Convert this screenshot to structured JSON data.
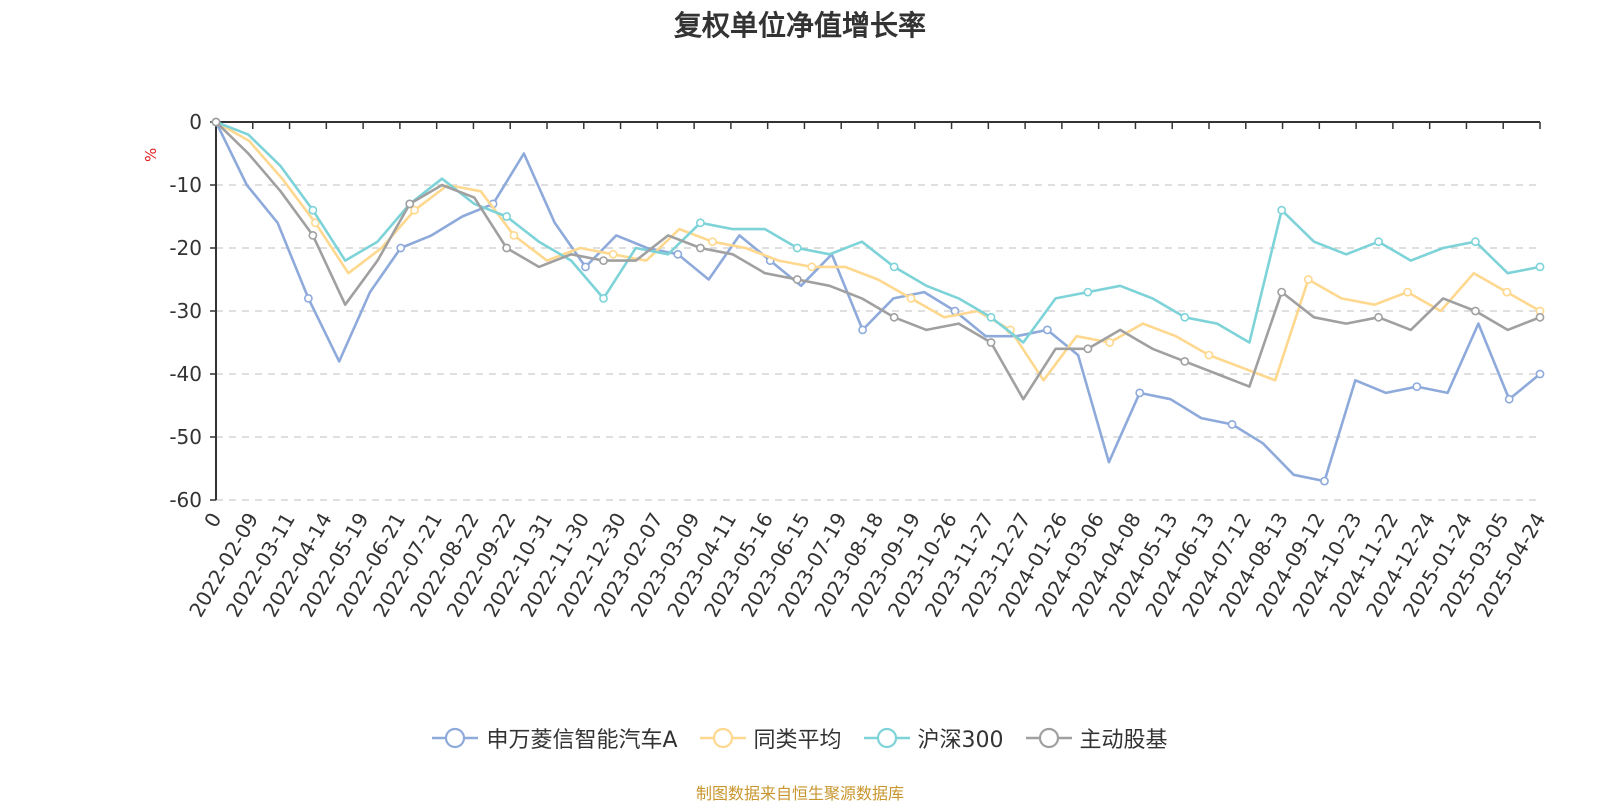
{
  "chart_data": {
    "type": "line",
    "title": "复权单位净值增长率",
    "ylabel": "%",
    "ylim": [
      -60,
      0
    ],
    "yticks": [
      0,
      -10,
      -20,
      -30,
      -40,
      -50,
      -60
    ],
    "xtick_labels": [
      "0",
      "2022-02-09",
      "2022-03-11",
      "2022-04-14",
      "2022-05-19",
      "2022-06-21",
      "2022-07-21",
      "2022-08-22",
      "2022-09-22",
      "2022-10-31",
      "2022-11-30",
      "2022-12-30",
      "2023-02-07",
      "2023-03-09",
      "2023-04-11",
      "2023-05-16",
      "2023-06-15",
      "2023-07-19",
      "2023-08-18",
      "2023-09-19",
      "2023-10-26",
      "2023-11-27",
      "2023-12-27",
      "2024-01-26",
      "2024-03-06",
      "2024-04-08",
      "2024-05-13",
      "2024-06-13",
      "2024-07-12",
      "2024-08-13",
      "2024-09-12",
      "2024-10-23",
      "2024-11-22",
      "2024-12-24",
      "2025-01-24",
      "2025-03-05",
      "2025-04-24"
    ],
    "grid": true,
    "legend_position": "bottom-center",
    "series": [
      {
        "name": "申万菱信智能汽车A",
        "color": "#8eaadb",
        "values": [
          0,
          -10,
          -16,
          -28,
          -38,
          -27,
          -20,
          -18,
          -15,
          -13,
          -5,
          -16,
          -23,
          -18,
          -20,
          -21,
          -25,
          -18,
          -22,
          -26,
          -21,
          -33,
          -28,
          -27,
          -30,
          -34,
          -34,
          -33,
          -37,
          -54,
          -43,
          -44,
          -47,
          -48,
          -51,
          -56,
          -57,
          -41,
          -43,
          -42,
          -43,
          -32,
          -44,
          -40
        ]
      },
      {
        "name": "同类平均",
        "color": "#ffd88f",
        "values": [
          0,
          -3,
          -9,
          -16,
          -24,
          -20,
          -14,
          -10,
          -11,
          -18,
          -22,
          -20,
          -21,
          -22,
          -17,
          -19,
          -20,
          -22,
          -23,
          -23,
          -25,
          -28,
          -31,
          -30,
          -33,
          -41,
          -34,
          -35,
          -32,
          -34,
          -37,
          -39,
          -41,
          -25,
          -28,
          -29,
          -27,
          -30,
          -24,
          -27,
          -30
        ]
      },
      {
        "name": "沪深300",
        "color": "#7dd3d8",
        "values": [
          0,
          -2,
          -7,
          -14,
          -22,
          -19,
          -13,
          -9,
          -13,
          -15,
          -19,
          -22,
          -28,
          -20,
          -21,
          -16,
          -17,
          -17,
          -20,
          -21,
          -19,
          -23,
          -26,
          -28,
          -31,
          -35,
          -28,
          -27,
          -26,
          -28,
          -31,
          -32,
          -35,
          -14,
          -19,
          -21,
          -19,
          -22,
          -20,
          -19,
          -24,
          -23
        ]
      },
      {
        "name": "主动股基",
        "color": "#a0a0a0",
        "values": [
          0,
          -5,
          -11,
          -18,
          -29,
          -22,
          -13,
          -10,
          -12,
          -20,
          -23,
          -21,
          -22,
          -22,
          -18,
          -20,
          -21,
          -24,
          -25,
          -26,
          -28,
          -31,
          -33,
          -32,
          -35,
          -44,
          -36,
          -36,
          -33,
          -36,
          -38,
          -40,
          -42,
          -27,
          -31,
          -32,
          -31,
          -33,
          -28,
          -30,
          -33,
          -31
        ]
      }
    ]
  },
  "source": "制图数据来自恒生聚源数据库"
}
